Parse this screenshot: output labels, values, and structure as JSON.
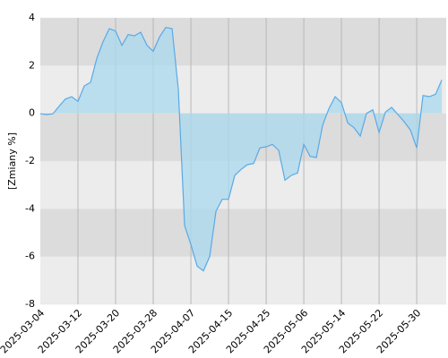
{
  "chart_data": {
    "type": "area",
    "y_label": "[Zmiany %]",
    "categories": [
      "2025-03-04",
      null,
      null,
      null,
      null,
      null,
      "2025-03-12",
      null,
      null,
      null,
      null,
      null,
      "2025-03-20",
      null,
      null,
      null,
      null,
      null,
      "2025-03-28",
      null,
      null,
      null,
      null,
      null,
      "2025-04-07",
      null,
      null,
      null,
      null,
      null,
      "2025-04-15",
      null,
      null,
      null,
      null,
      null,
      "2025-04-25",
      null,
      null,
      null,
      null,
      null,
      "2025-05-06",
      null,
      null,
      null,
      null,
      null,
      "2025-05-14",
      null,
      null,
      null,
      null,
      null,
      "2025-05-22",
      null,
      null,
      null,
      null,
      null,
      "2025-05-30",
      null,
      null,
      null,
      null
    ],
    "values": [
      -0.02,
      -0.05,
      -0.02,
      0.3,
      0.6,
      0.7,
      0.5,
      1.15,
      1.3,
      2.3,
      3.0,
      3.55,
      3.45,
      2.85,
      3.3,
      3.25,
      3.4,
      2.85,
      2.6,
      3.2,
      3.6,
      3.55,
      1.0,
      -4.7,
      -5.5,
      -6.4,
      -6.6,
      -6.0,
      -4.1,
      -3.6,
      -3.6,
      -2.6,
      -2.35,
      -2.15,
      -2.1,
      -1.45,
      -1.4,
      -1.3,
      -1.55,
      -2.8,
      -2.6,
      -2.5,
      -1.3,
      -1.8,
      -1.85,
      -0.5,
      0.2,
      0.7,
      0.45,
      -0.4,
      -0.6,
      -0.95,
      0.0,
      0.15,
      -0.8,
      0.05,
      0.25,
      -0.05,
      -0.35,
      -0.7,
      -1.45,
      0.75,
      0.7,
      0.8,
      1.4
    ],
    "color": "#5aa9e6",
    "fill_color": "#a9d9ee",
    "ylim": [
      -8,
      4
    ],
    "yticks": [
      -8,
      -6,
      -4,
      -2,
      0,
      2,
      4
    ],
    "grid": true
  }
}
